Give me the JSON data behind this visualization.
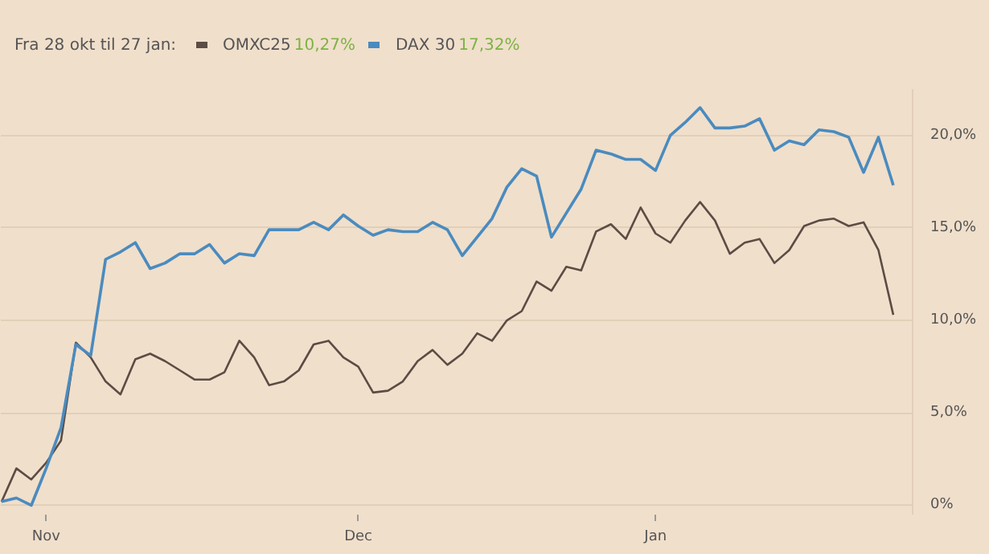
{
  "chart_data": {
    "type": "line",
    "subtitle": "Fra 28 okt til 27 jan:",
    "categories": [
      null,
      null,
      null,
      "Nov",
      null,
      null,
      null,
      null,
      null,
      null,
      null,
      null,
      null,
      null,
      null,
      null,
      null,
      null,
      null,
      null,
      null,
      null,
      null,
      null,
      "Dec",
      null,
      null,
      null,
      null,
      null,
      null,
      null,
      null,
      null,
      null,
      null,
      null,
      null,
      null,
      null,
      null,
      null,
      null,
      null,
      "Jan",
      null,
      null,
      null,
      null,
      null,
      null,
      null,
      null,
      null,
      null,
      null,
      null,
      null,
      null,
      null,
      null
    ],
    "series": [
      {
        "name": "OMXC25",
        "color": "#5b4c44",
        "values": [
          0.2,
          2.0,
          1.4,
          2.3,
          3.5,
          8.8,
          8.0,
          6.7,
          6.0,
          7.9,
          8.2,
          7.8,
          7.3,
          6.8,
          6.8,
          7.2,
          8.9,
          8.0,
          6.5,
          6.7,
          7.3,
          8.7,
          8.9,
          8.0,
          7.5,
          6.1,
          6.2,
          6.7,
          7.8,
          8.4,
          7.6,
          8.2,
          9.3,
          8.9,
          10.0,
          10.5,
          12.1,
          11.6,
          12.9,
          12.7,
          14.8,
          15.2,
          14.4,
          16.1,
          14.7,
          14.2,
          15.4,
          16.4,
          15.4,
          13.6,
          14.2,
          14.4,
          13.1,
          13.8,
          15.1,
          15.4,
          15.5,
          15.1,
          15.3,
          13.8,
          10.3
        ]
      },
      {
        "name": "DAX 30",
        "color": "#4a8bbf",
        "values": [
          0.2,
          0.4,
          0,
          2.0,
          4.2,
          8.7,
          8.1,
          13.3,
          13.7,
          14.2,
          12.8,
          13.1,
          13.6,
          13.6,
          14.1,
          13.1,
          13.6,
          13.5,
          14.9,
          14.9,
          14.9,
          15.3,
          14.9,
          15.7,
          15.1,
          14.6,
          14.9,
          14.8,
          14.8,
          15.3,
          14.9,
          13.5,
          14.5,
          15.5,
          17.2,
          18.2,
          17.8,
          14.5,
          15.8,
          17.1,
          19.2,
          19.0,
          18.7,
          18.7,
          18.1,
          20.0,
          20.7,
          21.5,
          20.4,
          20.4,
          20.5,
          20.9,
          19.2,
          19.7,
          19.5,
          20.3,
          20.2,
          19.9,
          18.0,
          19.9,
          17.3
        ]
      }
    ],
    "annotations": [
      "10,27%",
      "17,32%"
    ],
    "ylim": [
      -0.5,
      22.5
    ],
    "yticks": [
      {
        "value": 0,
        "label": "0%"
      },
      {
        "value": 5,
        "label": "5,0%"
      },
      {
        "value": 10,
        "label": "10,0%"
      },
      {
        "value": 15,
        "label": "15,0%"
      },
      {
        "value": 20,
        "label": "20,0%"
      }
    ],
    "grid": "y",
    "legend": "top left",
    "line_style": "solid",
    "marker": "none"
  }
}
